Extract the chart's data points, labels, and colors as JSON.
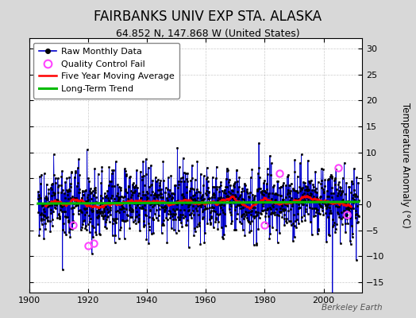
{
  "title": "FAIRBANKS UNIV EXP STA. ALASKA",
  "subtitle": "64.852 N, 147.868 W (United States)",
  "ylabel": "Temperature Anomaly (°C)",
  "watermark": "Berkeley Earth",
  "start_year": 1903,
  "end_year": 2011,
  "ylim": [
    -17,
    32
  ],
  "yticks": [
    -15,
    -10,
    -5,
    0,
    5,
    10,
    15,
    20,
    25,
    30
  ],
  "xticks": [
    1900,
    1920,
    1940,
    1960,
    1980,
    2000
  ],
  "fig_bg_color": "#d8d8d8",
  "plot_bg": "#ffffff",
  "raw_line_color": "#0000cc",
  "raw_fill_color": "#9999ff",
  "raw_marker_color": "#000000",
  "qc_fail_color": "#ff44ff",
  "moving_avg_color": "#ff0000",
  "trend_color": "#00bb00",
  "title_fontsize": 12,
  "subtitle_fontsize": 9,
  "legend_fontsize": 8,
  "tick_labelsize": 8
}
